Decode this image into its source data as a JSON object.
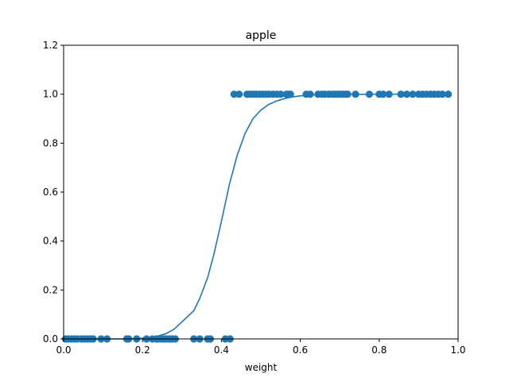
{
  "chart_data": {
    "type": "scatter",
    "title": "apple",
    "xlabel": "weight",
    "ylabel": "",
    "xlim": [
      0.0,
      1.0
    ],
    "ylim": [
      0.0,
      1.2
    ],
    "x_ticks": [
      "0.0",
      "0.2",
      "0.4",
      "0.6",
      "0.8",
      "1.0"
    ],
    "y_ticks": [
      "0.0",
      "0.2",
      "0.4",
      "0.6",
      "0.8",
      "1.0",
      "1.2"
    ],
    "grid": false,
    "color": "#1f77b4",
    "series": [
      {
        "type": "scatter",
        "x": [
          0.005,
          0.012,
          0.02,
          0.028,
          0.035,
          0.045,
          0.052,
          0.06,
          0.068,
          0.075,
          0.095,
          0.11,
          0.16,
          0.165,
          0.185,
          0.21,
          0.225,
          0.235,
          0.24,
          0.248,
          0.255,
          0.26,
          0.268,
          0.275,
          0.283,
          0.33,
          0.345,
          0.365,
          0.372,
          0.41,
          0.422
        ],
        "y": [
          0,
          0,
          0,
          0,
          0,
          0,
          0,
          0,
          0,
          0,
          0,
          0,
          0,
          0,
          0,
          0,
          0,
          0,
          0,
          0,
          0,
          0,
          0,
          0,
          0,
          0,
          0,
          0,
          0,
          0,
          0
        ]
      },
      {
        "type": "scatter",
        "x": [
          0.432,
          0.445,
          0.465,
          0.472,
          0.48,
          0.488,
          0.497,
          0.505,
          0.513,
          0.52,
          0.53,
          0.54,
          0.55,
          0.565,
          0.57,
          0.575,
          0.615,
          0.625,
          0.645,
          0.655,
          0.662,
          0.672,
          0.68,
          0.688,
          0.695,
          0.7,
          0.708,
          0.715,
          0.72,
          0.74,
          0.775,
          0.8,
          0.81,
          0.825,
          0.855,
          0.87,
          0.885,
          0.9,
          0.91,
          0.92,
          0.93,
          0.94,
          0.95,
          0.96,
          0.975
        ],
        "y": [
          1,
          1,
          1,
          1,
          1,
          1,
          1,
          1,
          1,
          1,
          1,
          1,
          1,
          1,
          1,
          1,
          1,
          1,
          1,
          1,
          1,
          1,
          1,
          1,
          1,
          1,
          1,
          1,
          1,
          1,
          1,
          1,
          1,
          1,
          1,
          1,
          1,
          1,
          1,
          1,
          1,
          1,
          1,
          1,
          1
        ]
      },
      {
        "type": "line",
        "x": [
          0.005,
          0.05,
          0.1,
          0.15,
          0.2,
          0.22,
          0.24,
          0.26,
          0.28,
          0.3,
          0.33,
          0.345,
          0.365,
          0.38,
          0.4,
          0.42,
          0.44,
          0.46,
          0.48,
          0.5,
          0.52,
          0.54,
          0.56,
          0.58,
          0.6,
          0.62,
          0.65,
          0.7,
          0.8,
          0.9,
          0.975
        ],
        "y": [
          0.0,
          0.0,
          0.0,
          0.0,
          0.003,
          0.006,
          0.012,
          0.022,
          0.04,
          0.07,
          0.115,
          0.165,
          0.25,
          0.34,
          0.48,
          0.63,
          0.75,
          0.84,
          0.9,
          0.935,
          0.958,
          0.972,
          0.982,
          0.989,
          0.993,
          0.996,
          0.998,
          0.999,
          1.0,
          1.0,
          1.0
        ]
      }
    ]
  }
}
